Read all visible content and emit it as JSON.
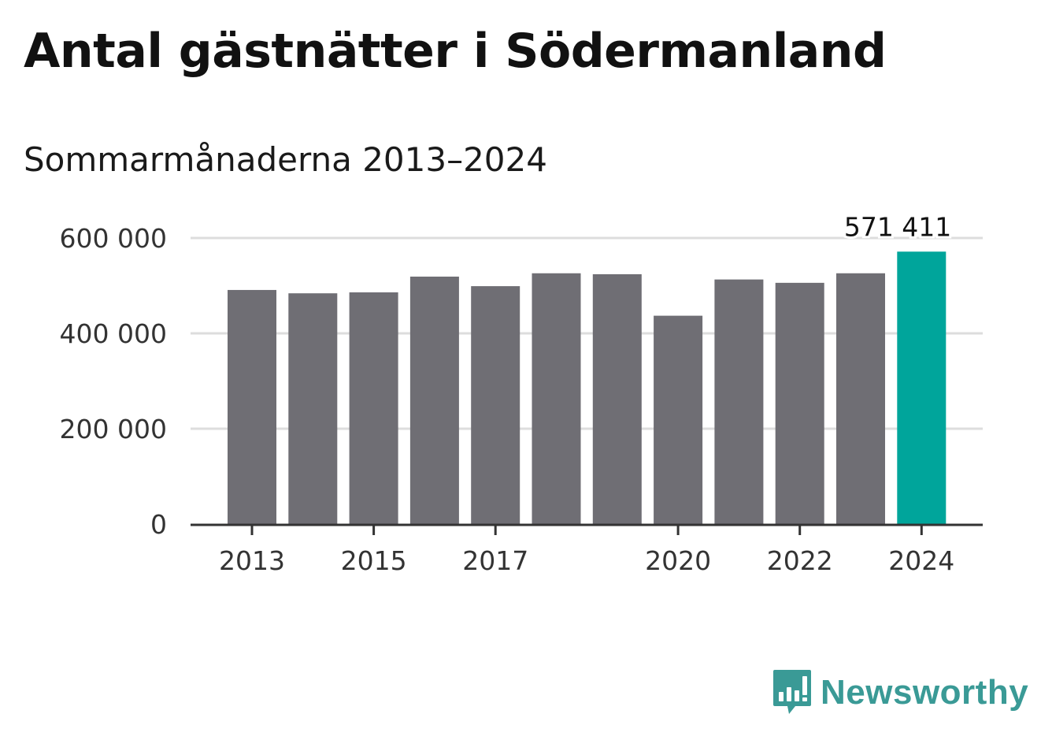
{
  "header": {
    "title": "Antal gästnätter i Södermanland",
    "subtitle": "Sommarmånaderna 2013–2024"
  },
  "brand": {
    "name": "Newsworthy",
    "color": "#3a9a96",
    "icon": "newsworthy-bar-chart-logo-icon"
  },
  "colors": {
    "bar_default": "#6f6e74",
    "bar_highlight": "#00a59b",
    "grid": "#dddddd",
    "axis": "#333333"
  },
  "chart_data": {
    "type": "bar",
    "categories": [
      "2013",
      "2014",
      "2015",
      "2016",
      "2017",
      "2018",
      "2019",
      "2020",
      "2021",
      "2022",
      "2023",
      "2024"
    ],
    "values": [
      491000,
      484000,
      486000,
      519000,
      499000,
      526000,
      524000,
      437000,
      513000,
      506000,
      526000,
      571411
    ],
    "highlight_index": 11,
    "data_labels": [
      {
        "index": 11,
        "text": "571 411"
      }
    ],
    "ylim": [
      0,
      600000
    ],
    "yticks": [
      {
        "value": 0,
        "label": "0"
      },
      {
        "value": 200000,
        "label": "200 000"
      },
      {
        "value": 400000,
        "label": "400 000"
      },
      {
        "value": 600000,
        "label": "600 000"
      }
    ],
    "xtick_labels": [
      {
        "index": 0,
        "label": "2013"
      },
      {
        "index": 2,
        "label": "2015"
      },
      {
        "index": 4,
        "label": "2017"
      },
      {
        "index": 7,
        "label": "2020"
      },
      {
        "index": 9,
        "label": "2022"
      },
      {
        "index": 11,
        "label": "2024"
      }
    ],
    "grid": true,
    "legend": "none"
  }
}
